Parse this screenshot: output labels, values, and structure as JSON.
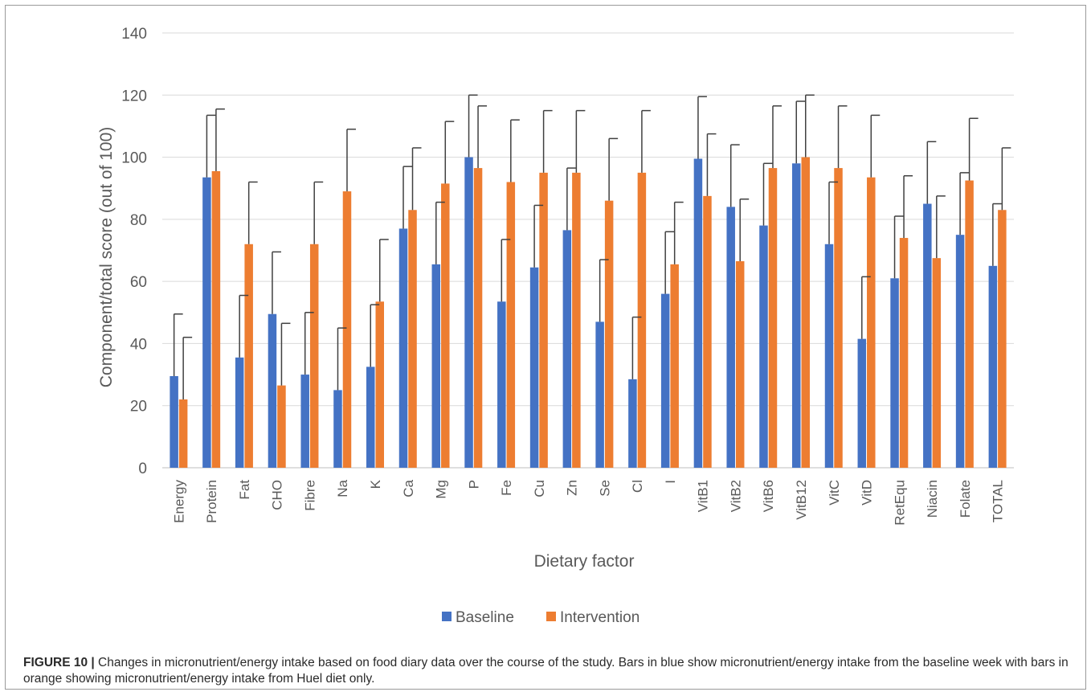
{
  "chart_data": {
    "type": "bar",
    "xlabel": "Dietary factor",
    "ylabel": "Component/total score (out of 100)",
    "ylim": [
      0,
      140
    ],
    "yticks": [
      0,
      20,
      40,
      60,
      80,
      100,
      120,
      140
    ],
    "grid": true,
    "legend_position": "bottom",
    "error_bars": true,
    "categories": [
      "Energy",
      "Protein",
      "Fat",
      "CHO",
      "Fibre",
      "Na",
      "K",
      "Ca",
      "Mg",
      "P",
      "Fe",
      "Cu",
      "Zn",
      "Se",
      "Cl",
      "I",
      "VitB1",
      "VitB2",
      "VitB6",
      "VitB12",
      "VitC",
      "VitD",
      "RetEqu",
      "Niacin",
      "Folate",
      "TOTAL"
    ],
    "series": [
      {
        "name": "Baseline",
        "color": "#4472c4",
        "values": [
          29.5,
          93.5,
          35.5,
          49.5,
          30,
          25,
          32.5,
          77,
          65.5,
          100,
          53.5,
          64.5,
          76.5,
          47,
          28.5,
          56,
          99.5,
          84,
          78,
          98,
          72,
          41.5,
          61,
          85,
          75,
          65
        ],
        "error": [
          20,
          20,
          20,
          20,
          20,
          20,
          20,
          20,
          20,
          20,
          20,
          20,
          20,
          20,
          20,
          20,
          20,
          20,
          20,
          20,
          20,
          20,
          20,
          20,
          20,
          20
        ]
      },
      {
        "name": "Intervention",
        "color": "#ed7d31",
        "values": [
          22,
          95.5,
          72,
          26.5,
          72,
          89,
          53.5,
          83,
          91.5,
          96.5,
          92,
          95,
          95,
          86,
          95,
          65.5,
          87.5,
          66.5,
          96.5,
          100,
          96.5,
          93.5,
          74,
          67.5,
          92.5,
          83
        ],
        "error": [
          20,
          20,
          20,
          20,
          20,
          20,
          20,
          20,
          20,
          20,
          20,
          20,
          20,
          20,
          20,
          20,
          20,
          20,
          20,
          20,
          20,
          20,
          20,
          20,
          20,
          20
        ]
      }
    ]
  },
  "caption": {
    "label": "FIGURE 10 |",
    "text": " Changes in micronutrient/energy intake based on food diary data over the course of the study. Bars in blue show micronutrient/energy intake from the baseline week with bars in orange showing micronutrient/energy intake from Huel diet only."
  }
}
